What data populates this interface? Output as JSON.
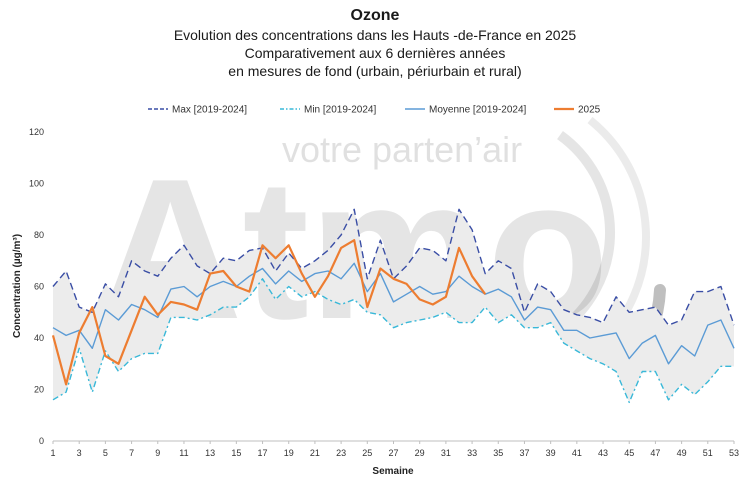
{
  "titles": {
    "main": "Ozone",
    "line1": "Evolution des concentrations dans les Hauts -de-France en 2025",
    "line2": "Comparativement aux 6 dernières années",
    "line3": "en mesures de fond (urbain, périurbain et rural)"
  },
  "watermark": {
    "text": "votre parten’air",
    "logo": "Atmo"
  },
  "chart_data": {
    "type": "line",
    "xlabel": "Semaine",
    "ylabel": "Concentration (µg/m³)",
    "ylim": [
      0,
      120
    ],
    "yticks": [
      0,
      20,
      40,
      60,
      80,
      100,
      120
    ],
    "xlim": [
      1,
      53
    ],
    "xticks": [
      1,
      3,
      5,
      7,
      9,
      11,
      13,
      15,
      17,
      19,
      21,
      23,
      25,
      27,
      29,
      31,
      33,
      35,
      37,
      39,
      41,
      43,
      45,
      47,
      49,
      51,
      53
    ],
    "legend_position": "top",
    "band_fill": "#ececec",
    "series": [
      {
        "name": "Max [2019-2024]",
        "color": "#3a4ea5",
        "dash": "long-dash",
        "x": [
          1,
          2,
          3,
          4,
          5,
          6,
          7,
          8,
          9,
          10,
          11,
          12,
          13,
          14,
          15,
          16,
          17,
          18,
          19,
          20,
          21,
          22,
          23,
          24,
          25,
          26,
          27,
          28,
          29,
          30,
          31,
          32,
          33,
          34,
          35,
          36,
          37,
          38,
          39,
          40,
          41,
          42,
          43,
          44,
          45,
          46,
          47,
          48,
          49,
          50,
          51,
          52,
          53
        ],
        "values": [
          60,
          66,
          52,
          50,
          61,
          56,
          70,
          66,
          64,
          71,
          76,
          68,
          65,
          71,
          70,
          74,
          75,
          66,
          73,
          67,
          70,
          74,
          80,
          90,
          63,
          78,
          63,
          68,
          75,
          74,
          70,
          90,
          82,
          65,
          70,
          67,
          50,
          61,
          58,
          51,
          49,
          48,
          46,
          56,
          50,
          51,
          52,
          45,
          47,
          58,
          58,
          60,
          45
        ]
      },
      {
        "name": "Min [2019-2024]",
        "color": "#39b8d8",
        "dash": "dash-dot",
        "x": [
          1,
          2,
          3,
          4,
          5,
          6,
          7,
          8,
          9,
          10,
          11,
          12,
          13,
          14,
          15,
          16,
          17,
          18,
          19,
          20,
          21,
          22,
          23,
          24,
          25,
          26,
          27,
          28,
          29,
          30,
          31,
          32,
          33,
          34,
          35,
          36,
          37,
          38,
          39,
          40,
          41,
          42,
          43,
          44,
          45,
          46,
          47,
          48,
          49,
          50,
          51,
          52,
          53
        ],
        "values": [
          16,
          19,
          36,
          19,
          35,
          27,
          32,
          34,
          34,
          48,
          48,
          47,
          49,
          52,
          52,
          56,
          63,
          55,
          60,
          56,
          58,
          55,
          53,
          55,
          50,
          49,
          44,
          46,
          47,
          48,
          50,
          46,
          46,
          52,
          46,
          49,
          44,
          44,
          46,
          38,
          35,
          32,
          30,
          27,
          15,
          27,
          27,
          16,
          22,
          18,
          23,
          29,
          29
        ]
      },
      {
        "name": "Moyenne [2019-2024]",
        "color": "#5b9bd5",
        "dash": "solid",
        "x": [
          1,
          2,
          3,
          4,
          5,
          6,
          7,
          8,
          9,
          10,
          11,
          12,
          13,
          14,
          15,
          16,
          17,
          18,
          19,
          20,
          21,
          22,
          23,
          24,
          25,
          26,
          27,
          28,
          29,
          30,
          31,
          32,
          33,
          34,
          35,
          36,
          37,
          38,
          39,
          40,
          41,
          42,
          43,
          44,
          45,
          46,
          47,
          48,
          49,
          50,
          51,
          52,
          53
        ],
        "values": [
          44,
          41,
          43,
          36,
          51,
          47,
          53,
          51,
          48,
          59,
          60,
          56,
          60,
          62,
          60,
          64,
          67,
          61,
          66,
          62,
          65,
          66,
          63,
          69,
          58,
          65,
          54,
          57,
          60,
          57,
          58,
          64,
          60,
          57,
          59,
          56,
          47,
          52,
          51,
          43,
          43,
          40,
          41,
          42,
          32,
          38,
          41,
          30,
          37,
          33,
          45,
          47,
          36
        ]
      },
      {
        "name": "2025",
        "color": "#ed7d31",
        "dash": "solid",
        "x": [
          1,
          2,
          3,
          4,
          5,
          6,
          7,
          8,
          9,
          10,
          11,
          12,
          13,
          14,
          15,
          16,
          17,
          18,
          19,
          20,
          21,
          22,
          23,
          24,
          25,
          26,
          27,
          28,
          29,
          30,
          31,
          32,
          33,
          34
        ],
        "values": [
          41,
          22,
          42,
          52,
          33,
          30,
          43,
          56,
          49,
          54,
          53,
          51,
          65,
          66,
          60,
          58,
          76,
          71,
          76,
          65,
          56,
          64,
          75,
          78,
          52,
          67,
          63,
          61,
          55,
          53,
          56,
          75,
          64,
          57
        ]
      }
    ]
  }
}
